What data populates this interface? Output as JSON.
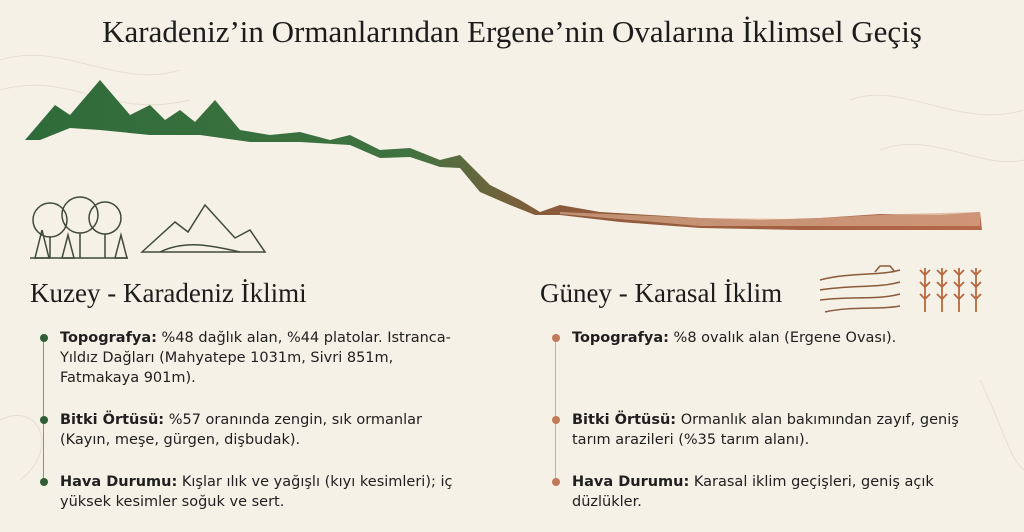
{
  "title": "Karadeniz’in Ormanlarından Ergene’nin Ovalarına İklimsel Geçiş",
  "north": {
    "heading": "Kuzey - Karadeniz İklimi",
    "color": "#2f5e36",
    "items": [
      {
        "label": "Topografya:",
        "text": "%48 dağlık alan, %44 platolar. Istranca-Yıldız Dağları (Mahyatepe 1031m, Sivri 851m, Fatmakaya 901m)."
      },
      {
        "label": "Bitki Örtüsü:",
        "text": "%57 oranında zengin, sık ormanlar (Kayın, meşe, gürgen, dişbudak)."
      },
      {
        "label": "Hava Durumu:",
        "text": "Kışlar ılık ve yağışlı (kıyı kesimleri); iç yüksek kesimler soğuk ve sert."
      }
    ]
  },
  "south": {
    "heading": "Güney - Karasal İklim",
    "color": "#c07a56",
    "items": [
      {
        "label": "Topografya:",
        "text": "%8 ovalık alan (Ergene Ovası)."
      },
      {
        "label": "Bitki Örtüsü:",
        "text": "Ormanlık alan bakımından zayıf, geniş tarım arazileri (%35 tarım alanı)."
      },
      {
        "label": "Hava Durumu:",
        "text": "Karasal iklim geçişleri, geniş açık düzlükler."
      }
    ]
  }
}
